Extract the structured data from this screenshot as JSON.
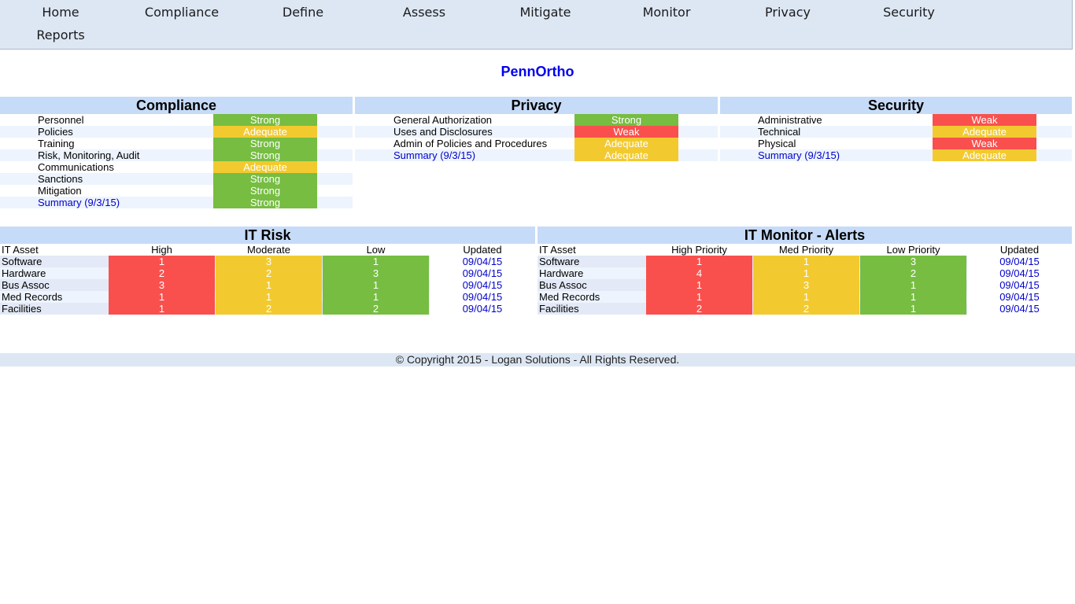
{
  "nav": [
    "Home",
    "Compliance",
    "Define",
    "Assess",
    "Mitigate",
    "Monitor",
    "Privacy",
    "Security",
    "Reports"
  ],
  "org_title": "PennOrtho",
  "compliance": {
    "title": "Compliance",
    "rows": [
      {
        "label": "Personnel",
        "rating": "Strong"
      },
      {
        "label": "Policies",
        "rating": "Adequate"
      },
      {
        "label": "Training",
        "rating": "Strong"
      },
      {
        "label": "Risk, Monitoring, Audit",
        "rating": "Strong"
      },
      {
        "label": "Communications",
        "rating": "Adequate"
      },
      {
        "label": "Sanctions",
        "rating": "Strong"
      },
      {
        "label": "Mitigation",
        "rating": "Strong"
      },
      {
        "label": "Summary (9/3/15)",
        "rating": "Strong",
        "link": true
      }
    ]
  },
  "privacy": {
    "title": "Privacy",
    "rows": [
      {
        "label": "General Authorization",
        "rating": "Strong"
      },
      {
        "label": "Uses and Disclosures",
        "rating": "Weak"
      },
      {
        "label": "Admin of Policies and Procedures",
        "rating": "Adequate"
      },
      {
        "label": "Summary (9/3/15)",
        "rating": "Adequate",
        "link": true
      }
    ]
  },
  "security": {
    "title": "Security",
    "rows": [
      {
        "label": "Administrative",
        "rating": "Weak"
      },
      {
        "label": "Technical",
        "rating": "Adequate"
      },
      {
        "label": "Physical",
        "rating": "Weak"
      },
      {
        "label": "Summary (9/3/15)",
        "rating": "Adequate",
        "link": true
      }
    ]
  },
  "it_risk": {
    "title": "IT Risk",
    "columns": [
      "IT Asset",
      "High",
      "Moderate",
      "Low",
      "Updated"
    ],
    "rows": [
      {
        "asset": "Software",
        "values": [
          1,
          3,
          1
        ],
        "updated": "09/04/15"
      },
      {
        "asset": "Hardware",
        "values": [
          2,
          2,
          3
        ],
        "updated": "09/04/15"
      },
      {
        "asset": "Bus Assoc",
        "values": [
          3,
          1,
          1
        ],
        "updated": "09/04/15"
      },
      {
        "asset": "Med Records",
        "values": [
          1,
          1,
          1
        ],
        "updated": "09/04/15"
      },
      {
        "asset": "Facilities",
        "values": [
          1,
          2,
          2
        ],
        "updated": "09/04/15"
      }
    ]
  },
  "it_monitor": {
    "title": "IT Monitor - Alerts",
    "columns": [
      "IT Asset",
      "High Priority",
      "Med Priority",
      "Low Priority",
      "Updated"
    ],
    "rows": [
      {
        "asset": "Software",
        "values": [
          1,
          1,
          3
        ],
        "updated": "09/04/15"
      },
      {
        "asset": "Hardware",
        "values": [
          4,
          1,
          2
        ],
        "updated": "09/04/15"
      },
      {
        "asset": "Bus Assoc",
        "values": [
          1,
          3,
          1
        ],
        "updated": "09/04/15"
      },
      {
        "asset": "Med Records",
        "values": [
          1,
          1,
          1
        ],
        "updated": "09/04/15"
      },
      {
        "asset": "Facilities",
        "values": [
          2,
          2,
          1
        ],
        "updated": "09/04/15"
      }
    ]
  },
  "colors": {
    "strong": "#76bd42",
    "adequate": "#f2ca30",
    "weak": "#f9504e",
    "header": "#c6dbf7",
    "link": "#0000cc"
  },
  "footer": "© Copyright  2015 - Logan Solutions - All Rights Reserved."
}
